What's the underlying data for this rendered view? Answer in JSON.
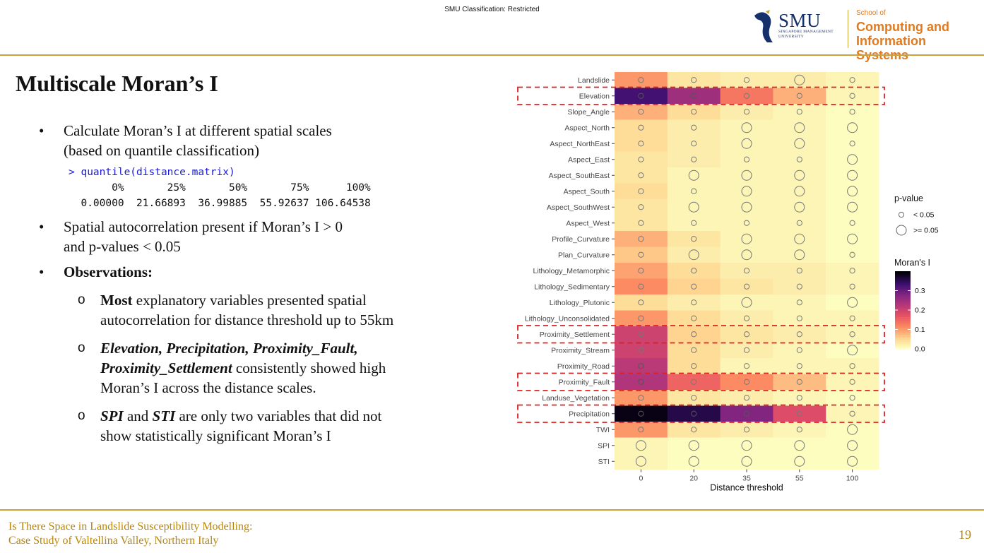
{
  "header": {
    "classification": "SMU Classification: Restricted",
    "logo_smu": "SMU",
    "logo_smu_sub_1": "SINGAPORE MANAGEMENT",
    "logo_smu_sub_2": "UNIVERSITY",
    "logo_school": "School of",
    "logo_unit_1": "Computing and",
    "logo_unit_2": "Information Systems"
  },
  "slide": {
    "title": "Multiscale Moran’s I",
    "bullet1_line1": "Calculate Moran’s I at different spatial scales",
    "bullet1_line2": "(based on quantile classification)",
    "code_cmd": "> quantile(distance.matrix)",
    "code_header": "       0%       25%       50%       75%      100% ",
    "code_values": "  0.00000  21.66893  36.99885  55.92637 106.64538 ",
    "bullet2_line1": "Spatial autocorrelation present if Moran’s I > 0",
    "bullet2_line2": "and p-values < 0.05",
    "bullet3": "Observations:",
    "sub1_bold": "Most",
    "sub1_rest": " explanatory variables presented spatial autocorrelation for distance threshold up to 55km",
    "sub2_bold": "Elevation, Precipitation, Proximity_Fault, Proximity_Settlement",
    "sub2_rest": " consistently showed high Moran’s I across the distance scales.",
    "sub3_bold1": "SPI",
    "sub3_mid": " and ",
    "sub3_bold2": "STI",
    "sub3_rest": " are only two variables that did not show statistically significant Moran’s I",
    "bullet_symbol": "•",
    "sub_symbol": "o"
  },
  "footer": {
    "line1": "Is There Space in Landslide Susceptibility Modelling:",
    "line2": "Case Study of Valtellina Valley, Northern Italy",
    "page_number": "19"
  },
  "chart_data": {
    "type": "heatmap",
    "xlabel": "Distance threshold",
    "x": [
      "0",
      "20",
      "35",
      "55",
      "100"
    ],
    "y": [
      "Landslide",
      "Elevation",
      "Slope_Angle",
      "Aspect_North",
      "Aspect_NorthEast",
      "Aspect_East",
      "Aspect_SouthEast",
      "Aspect_South",
      "Aspect_SouthWest",
      "Aspect_West",
      "Profile_Curvature",
      "Plan_Curvature",
      "Lithology_Metamorphic",
      "Lithology_Sedimentary",
      "Lithology_Plutonic",
      "Lithology_Unconsolidated",
      "Proximity_Settlement",
      "Proximity_Stream",
      "Proximity_Road",
      "Proximity_Fault",
      "Landuse_Vegetation",
      "Precipitation",
      "TWI",
      "SPI",
      "STI"
    ],
    "morans_i": [
      [
        0.1,
        0.03,
        0.02,
        0.02,
        0.01
      ],
      [
        0.33,
        0.25,
        0.13,
        0.08,
        0.01
      ],
      [
        0.08,
        0.04,
        0.02,
        0.01,
        0.0
      ],
      [
        0.04,
        0.02,
        0.01,
        0.01,
        0.0
      ],
      [
        0.04,
        0.02,
        0.01,
        0.01,
        0.0
      ],
      [
        0.03,
        0.02,
        0.01,
        0.01,
        0.0
      ],
      [
        0.03,
        0.01,
        0.01,
        0.01,
        0.0
      ],
      [
        0.04,
        0.01,
        0.01,
        0.01,
        0.0
      ],
      [
        0.03,
        0.01,
        0.01,
        0.01,
        0.0
      ],
      [
        0.03,
        0.01,
        0.01,
        0.01,
        0.0
      ],
      [
        0.08,
        0.03,
        0.01,
        0.01,
        0.0
      ],
      [
        0.06,
        0.02,
        0.01,
        0.01,
        0.0
      ],
      [
        0.09,
        0.04,
        0.02,
        0.02,
        0.01
      ],
      [
        0.11,
        0.05,
        0.03,
        0.02,
        0.01
      ],
      [
        0.04,
        0.02,
        0.01,
        0.01,
        0.0
      ],
      [
        0.1,
        0.04,
        0.02,
        0.01,
        0.01
      ],
      [
        0.2,
        0.05,
        0.03,
        0.02,
        0.01
      ],
      [
        0.2,
        0.04,
        0.02,
        0.01,
        0.0
      ],
      [
        0.22,
        0.04,
        0.01,
        0.01,
        0.01
      ],
      [
        0.23,
        0.15,
        0.11,
        0.07,
        0.01
      ],
      [
        0.1,
        0.03,
        0.02,
        0.01,
        0.0
      ],
      [
        0.39,
        0.36,
        0.28,
        0.18,
        0.01
      ],
      [
        0.1,
        0.03,
        0.02,
        0.01,
        0.0
      ],
      [
        0.01,
        0.0,
        0.0,
        0.0,
        0.0
      ],
      [
        0.01,
        0.0,
        0.0,
        0.0,
        0.0
      ]
    ],
    "p_value_ge_005": [
      [
        0,
        0,
        0,
        1,
        0
      ],
      [
        0,
        0,
        0,
        0,
        0
      ],
      [
        0,
        0,
        0,
        0,
        0
      ],
      [
        0,
        0,
        1,
        1,
        1
      ],
      [
        0,
        0,
        1,
        1,
        0
      ],
      [
        0,
        0,
        0,
        0,
        1
      ],
      [
        0,
        1,
        1,
        1,
        1
      ],
      [
        0,
        0,
        1,
        1,
        1
      ],
      [
        0,
        1,
        1,
        1,
        1
      ],
      [
        0,
        0,
        0,
        0,
        0
      ],
      [
        0,
        0,
        1,
        1,
        1
      ],
      [
        0,
        1,
        1,
        1,
        0
      ],
      [
        0,
        0,
        0,
        0,
        0
      ],
      [
        0,
        0,
        0,
        0,
        0
      ],
      [
        0,
        0,
        1,
        0,
        1
      ],
      [
        0,
        0,
        0,
        0,
        0
      ],
      [
        0,
        0,
        0,
        0,
        0
      ],
      [
        0,
        0,
        0,
        0,
        1
      ],
      [
        0,
        0,
        0,
        0,
        0
      ],
      [
        0,
        0,
        0,
        0,
        0
      ],
      [
        0,
        0,
        0,
        0,
        0
      ],
      [
        0,
        0,
        0,
        0,
        0
      ],
      [
        0,
        0,
        0,
        0,
        1
      ],
      [
        1,
        1,
        1,
        1,
        1
      ],
      [
        1,
        1,
        1,
        1,
        1
      ]
    ],
    "highlighted_rows": [
      "Elevation",
      "Proximity_Settlement",
      "Proximity_Fault",
      "Precipitation"
    ],
    "legend_pvalue_title": "p-value",
    "legend_pvalue_items": [
      "< 0.05",
      ">= 0.05"
    ],
    "legend_color_title": "Moran's I",
    "legend_color_ticks": [
      "0.3",
      "0.2",
      "0.1",
      "0.0"
    ],
    "legend_color_tick_values": [
      0.3,
      0.2,
      0.1,
      0.0
    ],
    "color_range": [
      0,
      0.4
    ],
    "colormap": "magma (reversed)",
    "highlight_color": "#e02020",
    "legend_placement": "right"
  }
}
